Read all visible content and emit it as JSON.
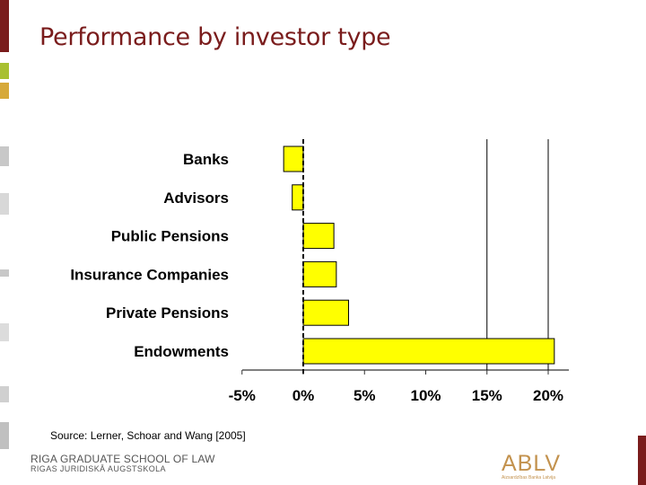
{
  "slide": {
    "title": "Performance by investor type",
    "source": "Source: Lerner, Schoar and Wang [2005]",
    "school_line1": "RIGA GRADUATE SCHOOL OF LAW",
    "school_line2": "RIGAS JURIDISKĀ AUGSTSKOLA",
    "logo_text": "ABLV",
    "logo_tagline": "Aizsardzības Banka Latvija"
  },
  "colors": {
    "title": "#7a1c1c",
    "bar_fill": "#ffff00",
    "accent_green": "#a8c030",
    "accent_gold": "#d6a93a",
    "gray_tab": "#c8c8c8",
    "logo": "#c3924e"
  },
  "chart_data": {
    "type": "bar",
    "orientation": "horizontal",
    "categories": [
      "Banks",
      "Advisors",
      "Public Pensions",
      "Insurance Companies",
      "Private Pensions",
      "Endowments"
    ],
    "values": [
      -1.6,
      -0.9,
      2.5,
      2.7,
      3.7,
      20.5
    ],
    "xlim": [
      -5,
      21
    ],
    "xticks": [
      -5,
      0,
      5,
      10,
      15,
      20
    ],
    "xtick_labels": [
      "-5%",
      "0%",
      "5%",
      "10%",
      "15%",
      "20%"
    ],
    "reference_lines": [
      15,
      20
    ],
    "zero_line_dashed": true,
    "grid": false,
    "legend": "none"
  }
}
